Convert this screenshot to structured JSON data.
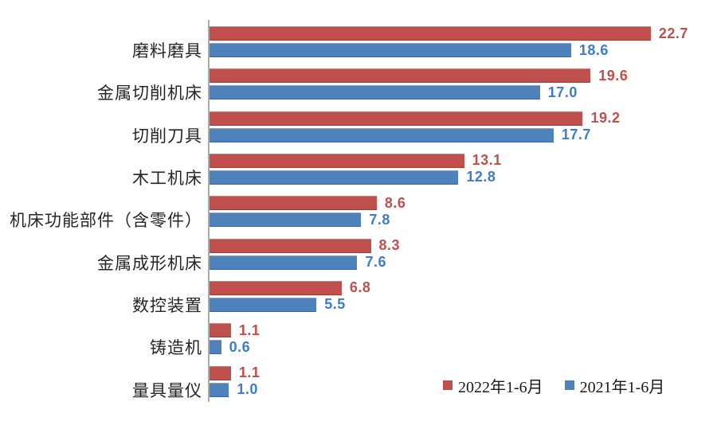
{
  "chart_data": {
    "type": "bar",
    "orientation": "horizontal",
    "title": "",
    "xlabel": "",
    "ylabel": "",
    "xlim": [
      0,
      25
    ],
    "grid": false,
    "legend_position": "bottom-right",
    "axis_line_color": "#ABABAB",
    "categories": [
      "磨料磨具",
      "金属切削机床",
      "切削刀具",
      "木工机床",
      "机床功能部件（含零件）",
      "金属成形机床",
      "数控装置",
      "铸造机",
      "量具量仪"
    ],
    "series": [
      {
        "name": "2022年1-6月",
        "color": "#C0504D",
        "label_color": "#C0504D",
        "values": [
          22.7,
          19.6,
          19.2,
          13.1,
          8.6,
          8.3,
          6.8,
          1.1,
          1.1
        ],
        "labels": [
          "22.7",
          "19.6",
          "19.2",
          "13.1",
          "8.6",
          "8.3",
          "6.8",
          "1.1",
          "1.1"
        ]
      },
      {
        "name": "2021年1-6月",
        "color": "#4F81BD",
        "label_color": "#3E7CC7",
        "values": [
          18.6,
          17.0,
          17.7,
          12.8,
          7.8,
          7.6,
          5.5,
          0.6,
          1.0
        ],
        "labels": [
          "18.6",
          "17.0",
          "17.7",
          "12.8",
          "7.8",
          "7.6",
          "5.5",
          "0.6",
          "1.0"
        ]
      }
    ]
  }
}
